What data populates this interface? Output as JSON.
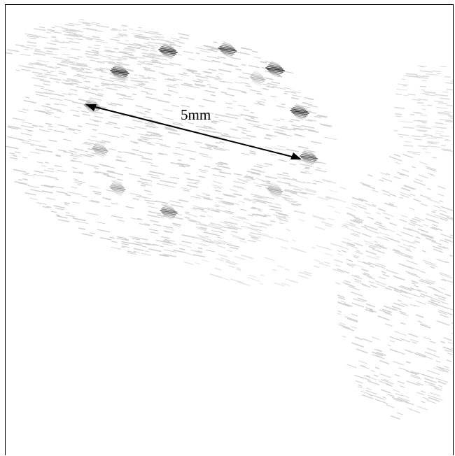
{
  "figure": {
    "scale_label": "5mm"
  }
}
